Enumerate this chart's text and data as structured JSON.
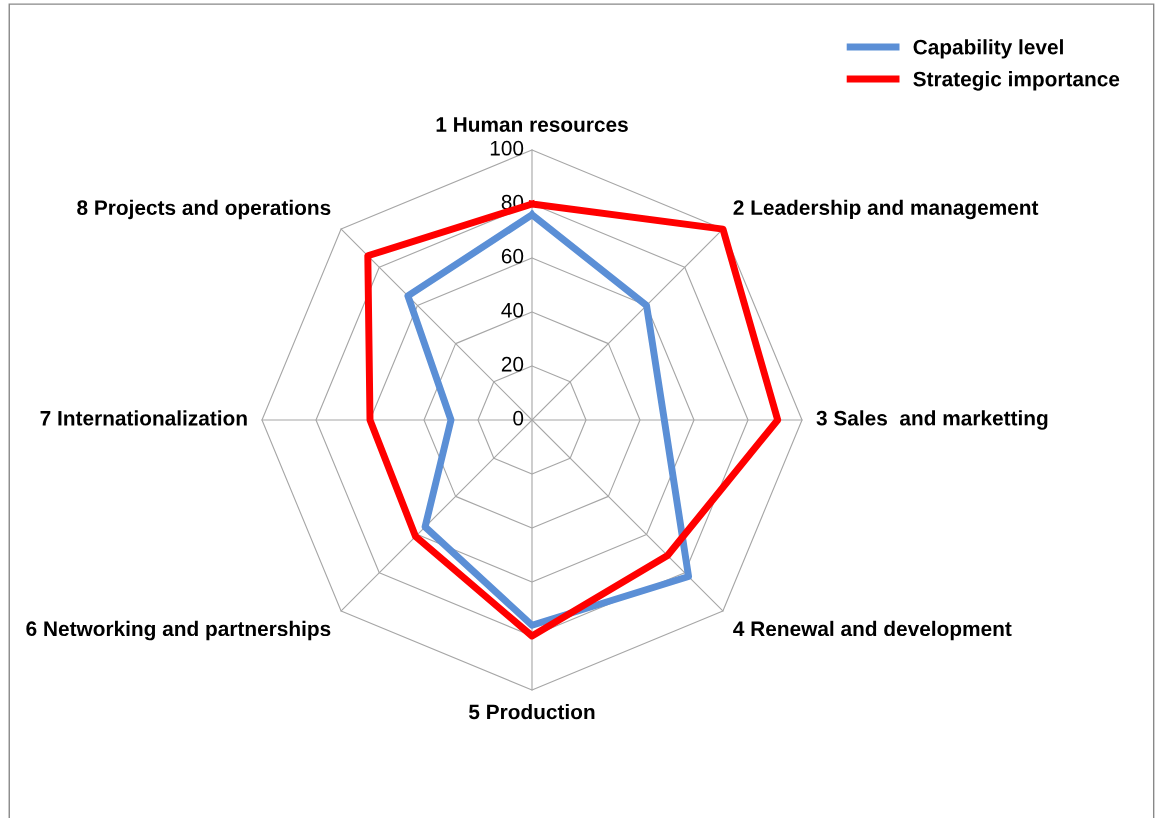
{
  "chart_data": {
    "type": "radar",
    "categories": [
      "1 Human resources",
      "2 Leadership and management",
      "3 Sales  and marketting",
      "4 Renewal and development",
      "5 Production",
      "6 Networking and partnerships",
      "7 Internationalization",
      "8 Projects and operations"
    ],
    "series": [
      {
        "name": "Capability level",
        "color": "#5b8fd6",
        "values": [
          76,
          60,
          49,
          82,
          76,
          56,
          30,
          65
        ]
      },
      {
        "name": "Strategic importance",
        "color": "#ff0000",
        "values": [
          80,
          100,
          91,
          71,
          80,
          61,
          60,
          86
        ]
      }
    ],
    "ylim": [
      0,
      100
    ],
    "yticks": [
      0,
      20,
      40,
      60,
      80,
      100
    ],
    "grid": true,
    "legend": "top right",
    "marker": "none"
  }
}
